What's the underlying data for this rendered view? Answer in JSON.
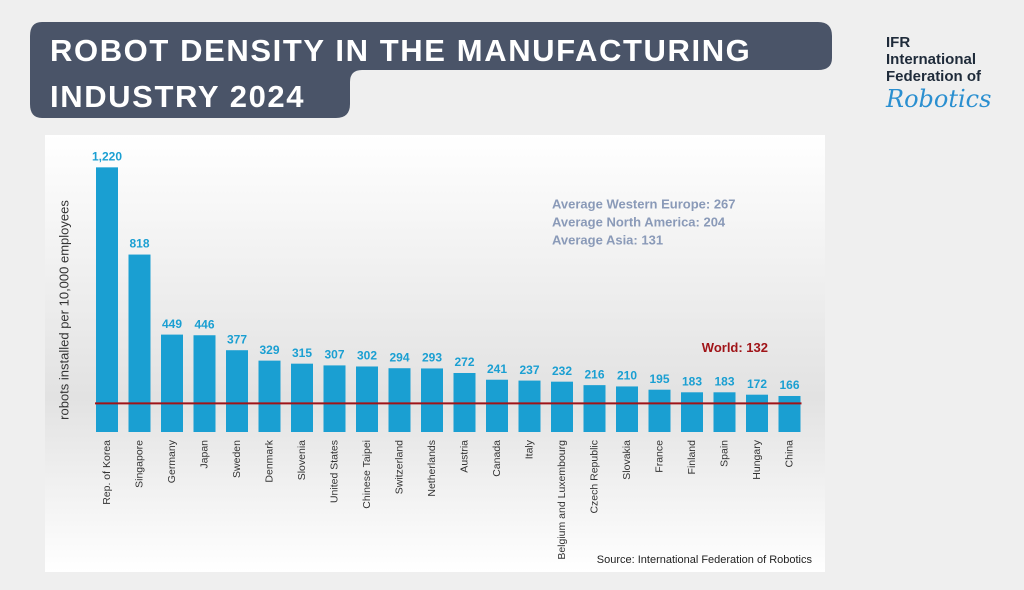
{
  "chart_data": {
    "type": "bar",
    "title": "ROBOT DENSITY IN THE MANUFACTURING INDUSTRY 2024",
    "y_label": "robots installed per 10,000 employees",
    "categories": [
      "Rep. of Korea",
      "Singapore",
      "Germany",
      "Japan",
      "Sweden",
      "Denmark",
      "Slovenia",
      "United States",
      "Chinese Taipei",
      "Switzerland",
      "Netherlands",
      "Austria",
      "Canada",
      "Italy",
      "Belgium and Luxembourg",
      "Czech Republic",
      "Slovakia",
      "France",
      "Finland",
      "Spain",
      "Hungary",
      "China"
    ],
    "values": [
      1220,
      818,
      449,
      446,
      377,
      329,
      315,
      307,
      302,
      294,
      293,
      272,
      241,
      237,
      232,
      216,
      210,
      195,
      183,
      183,
      172,
      166
    ],
    "value_labels": [
      "1,220",
      "818",
      "449",
      "446",
      "377",
      "329",
      "315",
      "307",
      "302",
      "294",
      "293",
      "272",
      "241",
      "237",
      "232",
      "216",
      "210",
      "195",
      "183",
      "183",
      "172",
      "166"
    ],
    "color": "#1a9fd2",
    "ylim": [
      0,
      1300
    ],
    "reference_line": {
      "value": 132,
      "label": "World: 132",
      "color": "#a01418"
    },
    "annotations": [
      "Average Western Europe: 267",
      "Average North America: 204",
      "Average Asia: 131"
    ],
    "source": "Source: International Federation of Robotics"
  },
  "logo": {
    "lines": [
      "IFR",
      "International",
      "Federation of"
    ],
    "script": "Robotics"
  }
}
